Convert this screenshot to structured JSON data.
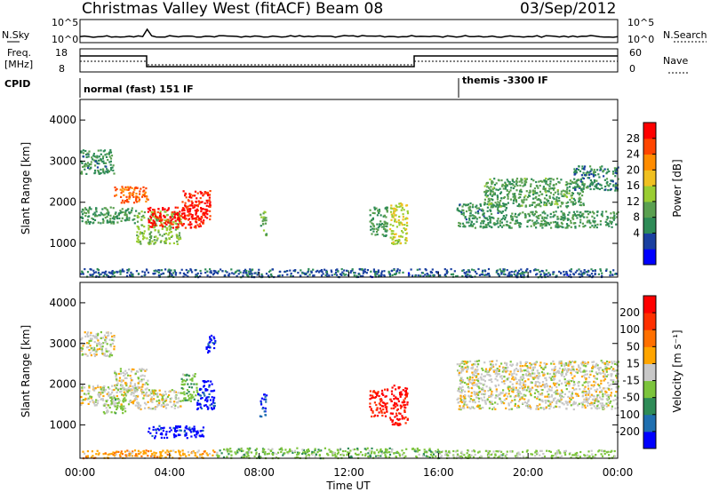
{
  "header": {
    "station": "Christmas Valley West (fitACF)",
    "beam": "Beam 08",
    "date": "03/Sep/2012"
  },
  "sky_panel": {
    "left_label": "N.Sky",
    "right_label": "N.Search",
    "left_ticks": [
      "10^5",
      "10^0"
    ],
    "right_ticks": [
      "10^5",
      "10^0"
    ]
  },
  "freq_panel": {
    "left_label_1": "Freq.",
    "left_label_2": "[MHz]",
    "right_label": "Nave",
    "left_ticks": [
      "18",
      "8"
    ],
    "right_ticks": [
      "60",
      "0"
    ]
  },
  "cpid": {
    "label": "CPID",
    "program_1": "normal (fast) 151 IF",
    "program_2": "themis -3300 IF"
  },
  "power_panel": {
    "ylabel": "Slant Range [km]",
    "y_ticks": [
      "4000",
      "3000",
      "2000",
      "1000"
    ],
    "cbar_label": "Power [dB]",
    "cbar_ticks": [
      "28",
      "24",
      "20",
      "16",
      "12",
      "8",
      "4"
    ],
    "cbar_colors": [
      "#0000ff",
      "#1a40a0",
      "#2e8b57",
      "#5aa050",
      "#9acd32",
      "#f0c020",
      "#ff8c00",
      "#ff4500",
      "#ff0000"
    ]
  },
  "velocity_panel": {
    "ylabel": "Slant Range [km]",
    "y_ticks": [
      "4000",
      "3000",
      "2000",
      "1000"
    ],
    "cbar_label": "Velocity [m s⁻¹]",
    "cbar_ticks": [
      "200",
      "100",
      "50",
      "15",
      "-15",
      "-50",
      "-100",
      "-200"
    ],
    "cbar_colors": [
      "#0000ff",
      "#1f6fb0",
      "#2e8b57",
      "#7cc43c",
      "#c8c8c8",
      "#ffa500",
      "#ff7000",
      "#ff3000",
      "#ff0000"
    ]
  },
  "x_axis": {
    "label": "Time UT",
    "ticks": [
      "00:00",
      "04:00",
      "08:00",
      "12:00",
      "16:00",
      "20:00",
      "00:00"
    ]
  },
  "chart_data": [
    {
      "type": "heatmap",
      "title": "Power",
      "xlabel": "Time UT",
      "ylabel": "Slant Range [km]",
      "xlim_hours": [
        0,
        24
      ],
      "ylim": [
        180,
        4500
      ],
      "colorbar": {
        "label": "Power [dB]",
        "range": [
          0,
          30
        ]
      },
      "blobs": [
        {
          "t0": 0.0,
          "t1": 2.5,
          "r0": 1500,
          "r1": 1900,
          "value": 10
        },
        {
          "t0": 0.0,
          "t1": 1.5,
          "r0": 2700,
          "r1": 3300,
          "value": 9
        },
        {
          "t0": 1.5,
          "t1": 3.0,
          "r0": 2000,
          "r1": 2400,
          "value": 24
        },
        {
          "t0": 2.5,
          "t1": 4.5,
          "r0": 1000,
          "r1": 1800,
          "value": 14
        },
        {
          "t0": 3.0,
          "t1": 5.5,
          "r0": 1400,
          "r1": 1900,
          "value": 28
        },
        {
          "t0": 4.5,
          "t1": 5.8,
          "r0": 1600,
          "r1": 2300,
          "value": 27
        },
        {
          "t0": 8.0,
          "t1": 8.3,
          "r0": 1200,
          "r1": 1800,
          "value": 12
        },
        {
          "t0": 12.9,
          "t1": 13.7,
          "r0": 1200,
          "r1": 1900,
          "value": 10
        },
        {
          "t0": 13.8,
          "t1": 14.6,
          "r0": 1000,
          "r1": 2000,
          "value": 16
        },
        {
          "t0": 16.8,
          "t1": 19.0,
          "r0": 1400,
          "r1": 2000,
          "value": 9
        },
        {
          "t0": 18.0,
          "t1": 22.5,
          "r0": 1900,
          "r1": 2600,
          "value": 11
        },
        {
          "t0": 19.0,
          "t1": 24.0,
          "r0": 1400,
          "r1": 1800,
          "value": 10
        },
        {
          "t0": 22.0,
          "t1": 24.0,
          "r0": 2300,
          "r1": 2900,
          "value": 8
        },
        {
          "t0": 0.0,
          "t1": 24.0,
          "r0": 200,
          "r1": 400,
          "value": 6
        }
      ]
    },
    {
      "type": "heatmap",
      "title": "Velocity",
      "xlabel": "Time UT",
      "ylabel": "Slant Range [km]",
      "xlim_hours": [
        0,
        24
      ],
      "ylim": [
        180,
        4500
      ],
      "colorbar": {
        "label": "Velocity [m s⁻¹]",
        "range": [
          -250,
          250
        ]
      },
      "blobs": [
        {
          "t0": 0.0,
          "t1": 2.5,
          "r0": 1500,
          "r1": 2000,
          "value": 0
        },
        {
          "t0": 0.0,
          "t1": 1.5,
          "r0": 2700,
          "r1": 3300,
          "value": 0
        },
        {
          "t0": 1.5,
          "t1": 3.0,
          "r0": 1800,
          "r1": 2400,
          "value": 0
        },
        {
          "t0": 1.0,
          "t1": 2.0,
          "r0": 1300,
          "r1": 1700,
          "value": -40
        },
        {
          "t0": 2.5,
          "t1": 4.5,
          "r0": 1400,
          "r1": 1900,
          "value": 0
        },
        {
          "t0": 3.0,
          "t1": 5.5,
          "r0": 700,
          "r1": 1000,
          "value": -220
        },
        {
          "t0": 4.5,
          "t1": 5.2,
          "r0": 1600,
          "r1": 2300,
          "value": -60
        },
        {
          "t0": 5.2,
          "t1": 6.0,
          "r0": 1400,
          "r1": 2100,
          "value": -220
        },
        {
          "t0": 5.6,
          "t1": 6.0,
          "r0": 2800,
          "r1": 3300,
          "value": -220
        },
        {
          "t0": 8.0,
          "t1": 8.3,
          "r0": 1200,
          "r1": 1800,
          "value": -200
        },
        {
          "t0": 12.9,
          "t1": 13.7,
          "r0": 1200,
          "r1": 1900,
          "value": 210
        },
        {
          "t0": 13.8,
          "t1": 14.6,
          "r0": 1000,
          "r1": 2000,
          "value": 220
        },
        {
          "t0": 16.8,
          "t1": 24.0,
          "r0": 1400,
          "r1": 2600,
          "value": 0
        },
        {
          "t0": 0.0,
          "t1": 6.0,
          "r0": 200,
          "r1": 400,
          "value": 60
        },
        {
          "t0": 6.0,
          "t1": 16.0,
          "r0": 200,
          "r1": 450,
          "value": -60
        },
        {
          "t0": 16.0,
          "t1": 24.0,
          "r0": 200,
          "r1": 400,
          "value": -40
        }
      ]
    }
  ]
}
